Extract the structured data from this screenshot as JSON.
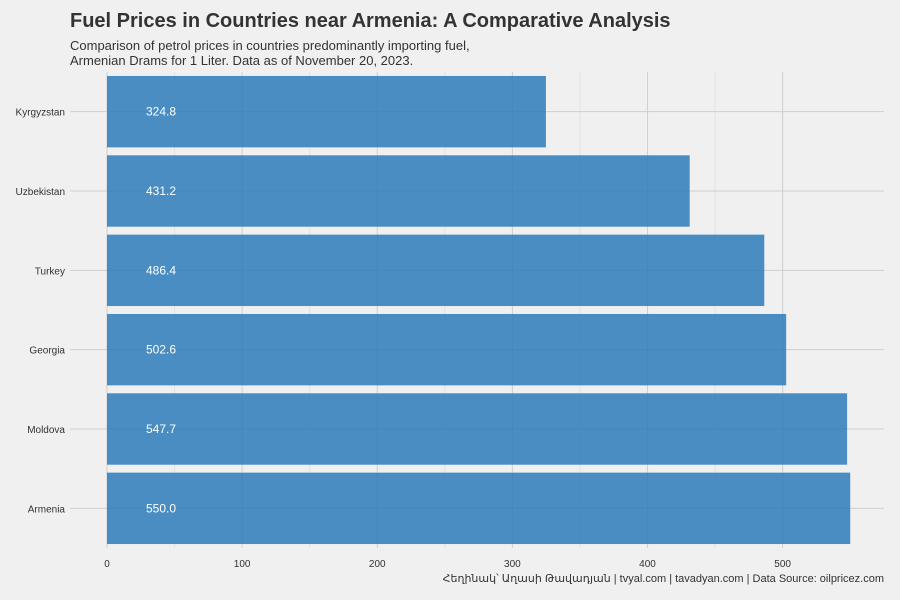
{
  "chart_data": {
    "type": "bar",
    "orientation": "horizontal",
    "title": "Fuel Prices in Countries near Armenia: A Comparative Analysis",
    "subtitle_lines": [
      "Comparison of petrol prices in countries predominantly importing fuel,",
      "Armenian Drams for 1 Liter. Data as of November 20, 2023."
    ],
    "categories": [
      "Kyrgyzstan",
      "Uzbekistan",
      "Turkey",
      "Georgia",
      "Moldova",
      "Armenia"
    ],
    "values": [
      324.8,
      431.2,
      486.4,
      502.6,
      547.7,
      550.0
    ],
    "value_labels": [
      "324.8",
      "431.2",
      "486.4",
      "502.6",
      "547.7",
      "550.0"
    ],
    "xlim": [
      0,
      575
    ],
    "x_ticks": [
      0,
      100,
      200,
      300,
      400,
      500
    ],
    "x_tick_labels": [
      "0",
      "100",
      "200",
      "300",
      "400",
      "500"
    ],
    "xlabel": "",
    "ylabel": "",
    "grid": true,
    "bar_color": "#2b7bba",
    "caption": "Հեղինակ՝ Աղասի Թավադյան   |   tvyal.com   |   tavadyan.com   |   Data Source: oilpricez.com"
  }
}
